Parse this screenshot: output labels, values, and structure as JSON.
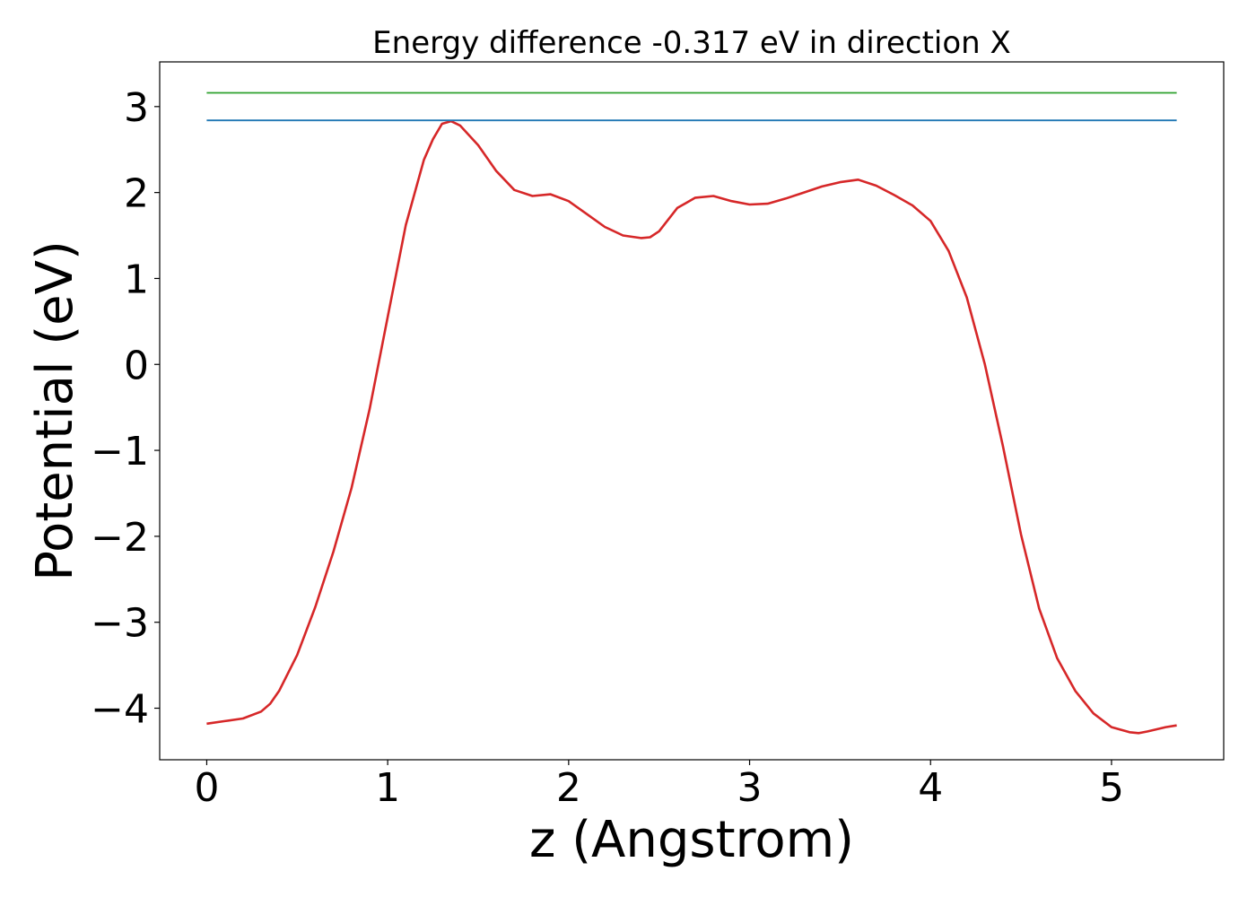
{
  "chart_data": {
    "type": "line",
    "title": "Energy difference -0.317 eV in direction X",
    "xlabel": "z (Angstrom)",
    "ylabel": "Potential (eV)",
    "xlim": [
      -0.26,
      5.62
    ],
    "ylim": [
      -4.6,
      3.52
    ],
    "x_ticks": [
      0,
      1,
      2,
      3,
      4,
      5
    ],
    "x_tick_labels": [
      "0",
      "1",
      "2",
      "3",
      "4",
      "5"
    ],
    "y_ticks": [
      3,
      2,
      1,
      0,
      -1,
      -2,
      -3,
      -4
    ],
    "y_tick_labels": [
      "3",
      "2",
      "1",
      "0",
      "−1",
      "−2",
      "−3",
      "−4"
    ],
    "grid": false,
    "series": [
      {
        "color": "#d62728",
        "x": [
          0.0,
          0.1,
          0.2,
          0.3,
          0.35,
          0.4,
          0.5,
          0.6,
          0.7,
          0.8,
          0.9,
          1.0,
          1.1,
          1.2,
          1.25,
          1.3,
          1.35,
          1.4,
          1.5,
          1.6,
          1.7,
          1.8,
          1.9,
          2.0,
          2.1,
          2.2,
          2.3,
          2.4,
          2.45,
          2.5,
          2.6,
          2.7,
          2.8,
          2.9,
          3.0,
          3.1,
          3.2,
          3.3,
          3.4,
          3.5,
          3.6,
          3.7,
          3.8,
          3.9,
          4.0,
          4.1,
          4.2,
          4.3,
          4.4,
          4.5,
          4.6,
          4.7,
          4.8,
          4.9,
          5.0,
          5.1,
          5.15,
          5.2,
          5.3,
          5.36
        ],
        "y": [
          -4.18,
          -4.15,
          -4.12,
          -4.04,
          -3.95,
          -3.8,
          -3.38,
          -2.82,
          -2.18,
          -1.44,
          -0.52,
          0.55,
          1.62,
          2.38,
          2.62,
          2.8,
          2.83,
          2.78,
          2.55,
          2.25,
          2.03,
          1.96,
          1.98,
          1.9,
          1.75,
          1.6,
          1.5,
          1.47,
          1.48,
          1.55,
          1.82,
          1.94,
          1.96,
          1.9,
          1.86,
          1.87,
          1.93,
          2.0,
          2.07,
          2.12,
          2.15,
          2.08,
          1.97,
          1.85,
          1.67,
          1.32,
          0.78,
          0.0,
          -0.95,
          -1.98,
          -2.84,
          -3.42,
          -3.8,
          -4.06,
          -4.22,
          -4.28,
          -4.29,
          -4.27,
          -4.22,
          -4.2
        ]
      },
      {
        "color": "#1f77b4",
        "x": [
          0.0,
          5.36
        ],
        "y": [
          2.84,
          2.84
        ]
      },
      {
        "color": "#2ca02c",
        "x": [
          0.0,
          5.36
        ],
        "y": [
          3.16,
          3.16
        ]
      }
    ]
  }
}
